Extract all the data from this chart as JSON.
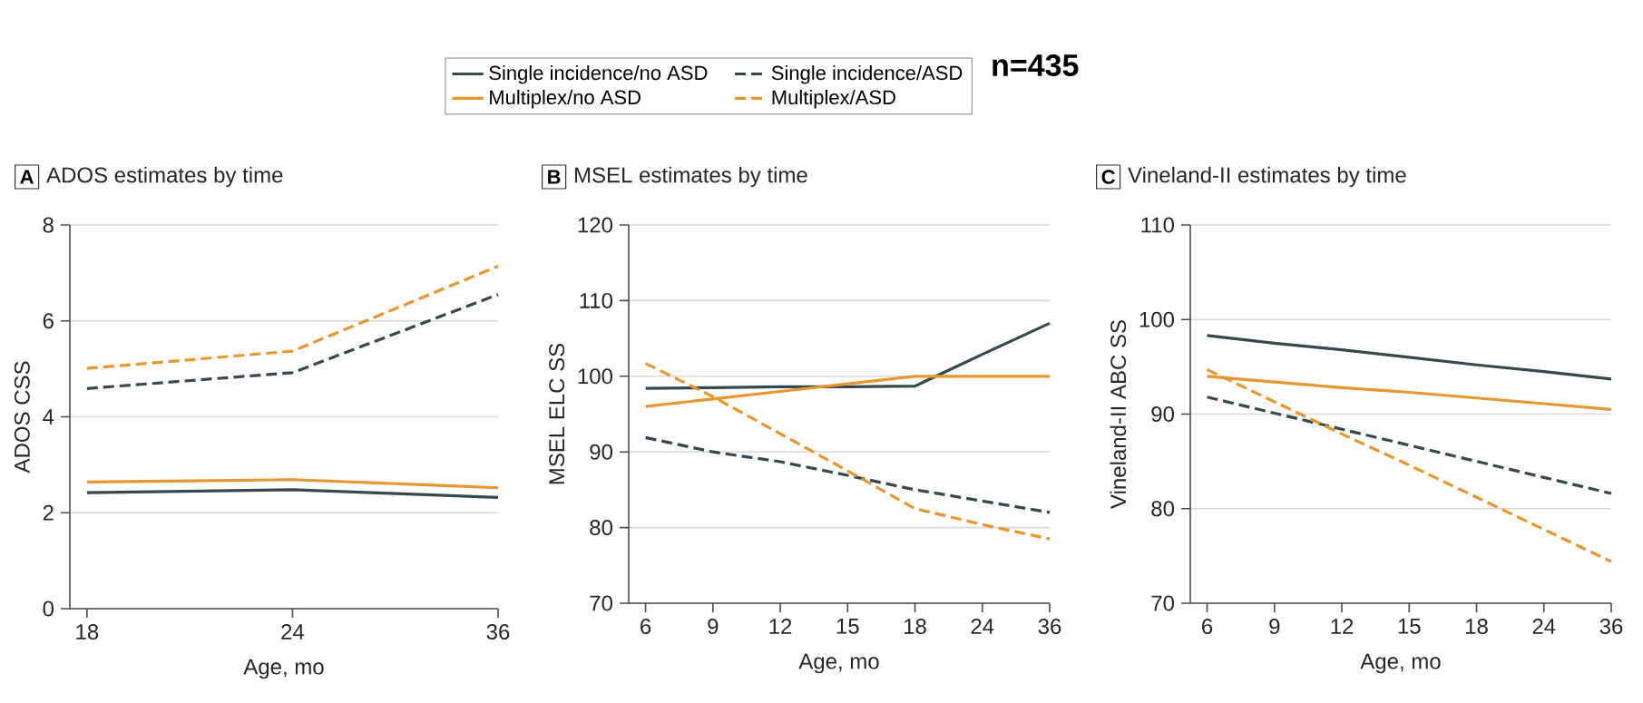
{
  "chart_data": [
    {
      "type": "line",
      "title": "ADOS estimates by time",
      "annotations": [
        "A"
      ],
      "xlabel": "Age, mo",
      "ylabel": "ADOS CSS",
      "categories": [
        "18",
        "24",
        "36"
      ],
      "ylim": [
        0,
        8
      ],
      "yticks": [
        0,
        2,
        4,
        6,
        8
      ],
      "grid": "y",
      "legend": false,
      "series": [
        {
          "color": "#34484f",
          "line_style": "solid",
          "values": [
            2.42,
            2.48,
            2.32
          ]
        },
        {
          "color": "#e8962e",
          "line_style": "solid",
          "values": [
            2.64,
            2.69,
            2.52
          ]
        },
        {
          "color": "#34484f",
          "line_style": "dashed",
          "values": [
            4.59,
            4.92,
            6.55
          ]
        },
        {
          "color": "#e8962e",
          "line_style": "dashed",
          "values": [
            5.01,
            5.37,
            7.14
          ]
        }
      ]
    },
    {
      "type": "line",
      "title": "MSEL estimates by time",
      "annotations": [
        "B",
        "n=435"
      ],
      "xlabel": "Age, mo",
      "ylabel": "MSEL ELC SS",
      "categories": [
        "6",
        "9",
        "12",
        "15",
        "18",
        "24",
        "36"
      ],
      "ylim": [
        70,
        120
      ],
      "yticks": [
        70,
        80,
        90,
        100,
        110,
        120
      ],
      "grid": "y",
      "legend": "top",
      "series": [
        {
          "name": "Single incidence/no ASD",
          "color": "#34484f",
          "line_style": "solid",
          "values": [
            98.4,
            98.5,
            98.6,
            98.6,
            98.7,
            102.9,
            107.0
          ]
        },
        {
          "name": "Multiplex/no ASD",
          "color": "#e8962e",
          "line_style": "solid",
          "values": [
            96.0,
            97.0,
            98.0,
            99.0,
            100.0,
            100.0,
            100.0
          ]
        },
        {
          "name": "Single incidence/ASD",
          "color": "#34484f",
          "line_style": "dashed",
          "values": [
            91.9,
            90.0,
            88.7,
            86.9,
            85.0,
            83.5,
            82.0
          ]
        },
        {
          "name": "Multiplex/ASD",
          "color": "#e8962e",
          "line_style": "dashed",
          "values": [
            101.7,
            97.3,
            92.4,
            87.5,
            82.5,
            80.4,
            78.5
          ]
        }
      ]
    },
    {
      "type": "line",
      "title": "Vineland-II estimates by time",
      "annotations": [
        "C"
      ],
      "xlabel": "Age, mo",
      "ylabel": "Vineland-II ABC SS",
      "categories": [
        "6",
        "9",
        "12",
        "15",
        "18",
        "24",
        "36"
      ],
      "ylim": [
        70,
        110
      ],
      "yticks": [
        70,
        80,
        90,
        100,
        110
      ],
      "grid": "y",
      "legend": false,
      "series": [
        {
          "color": "#34484f",
          "line_style": "solid",
          "values": [
            98.3,
            97.5,
            96.8,
            96.0,
            95.2,
            94.5,
            93.7
          ]
        },
        {
          "color": "#e8962e",
          "line_style": "solid",
          "values": [
            94.0,
            93.4,
            92.8,
            92.3,
            91.7,
            91.1,
            90.5
          ]
        },
        {
          "color": "#34484f",
          "line_style": "dashed",
          "values": [
            91.8,
            90.1,
            88.4,
            86.7,
            85.0,
            83.3,
            81.6
          ]
        },
        {
          "color": "#e8962e",
          "line_style": "dashed",
          "values": [
            94.7,
            91.3,
            87.9,
            84.6,
            81.2,
            77.8,
            74.4
          ]
        }
      ]
    }
  ]
}
